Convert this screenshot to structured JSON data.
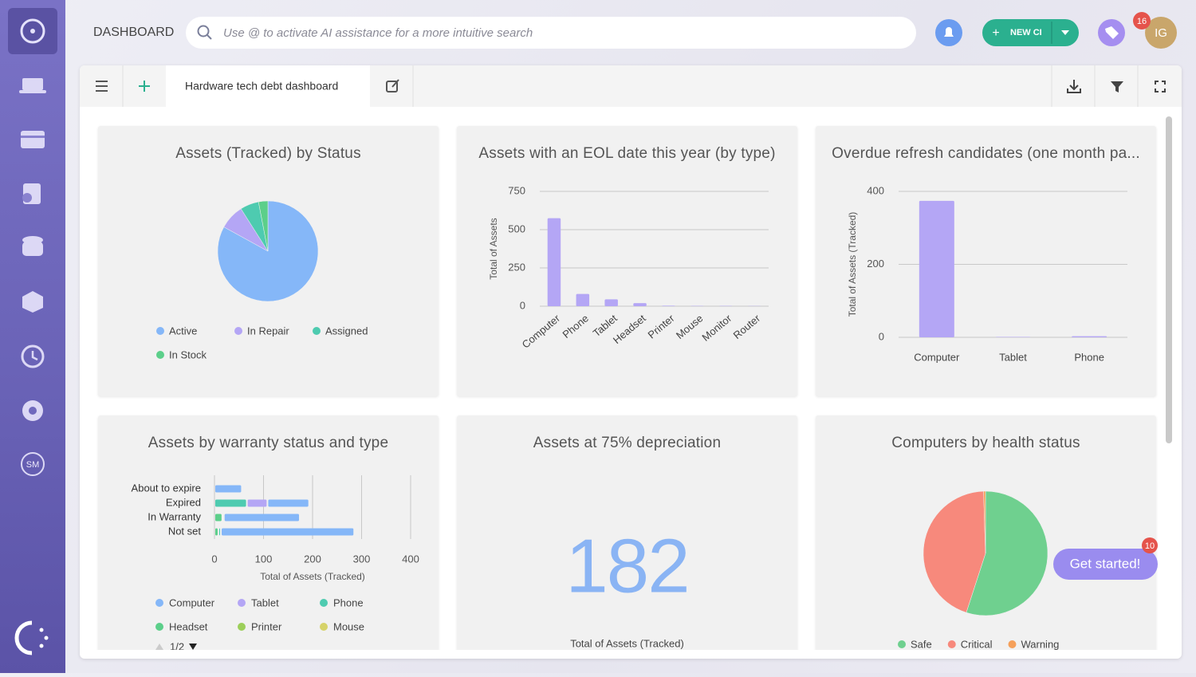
{
  "header": {
    "title": "DASHBOARD",
    "search_placeholder": "Use @ to activate AI assistance for a more intuitive search",
    "new_button": "NEW CI",
    "notification_count": 16,
    "avatar_initials": "IG"
  },
  "sidebar": {
    "sm_label": "SM"
  },
  "toolbar": {
    "tab": "Hardware tech debt dashboard"
  },
  "assistant": {
    "button": "Get started!",
    "badge": 10
  },
  "chart_data": [
    {
      "type": "pie",
      "title": "Assets (Tracked) by Status",
      "categories": [
        "Active",
        "In Repair",
        "Assigned",
        "In Stock"
      ],
      "values": [
        83,
        8,
        6,
        3
      ],
      "colors": [
        "#85b7f8",
        "#b4a6f5",
        "#4ecbb0",
        "#5ccf8a"
      ]
    },
    {
      "type": "bar",
      "title": "Assets with an EOL date this year (by type)",
      "y_label": "Total of Assets",
      "categories": [
        "Computer",
        "Phone",
        "Tablet",
        "Headset",
        "Printer",
        "Mouse",
        "Monitor",
        "Router"
      ],
      "values": [
        575,
        80,
        45,
        20,
        3,
        2,
        2,
        1
      ],
      "color": "#b4a6f5",
      "ylim": [
        0,
        750
      ],
      "yticks": [
        0,
        250,
        500,
        750
      ],
      "grid": true
    },
    {
      "type": "bar",
      "title": "Overdue refresh candidates (one month pa...",
      "y_label": "Total of Assets (Tracked)",
      "categories": [
        "Computer",
        "Tablet",
        "Phone"
      ],
      "values": [
        374,
        1,
        3
      ],
      "color": "#b4a6f5",
      "ylim": [
        0,
        400
      ],
      "yticks": [
        0,
        200,
        400
      ],
      "grid": true
    },
    {
      "type": "barh",
      "stacked": true,
      "title": "Assets by warranty status and type",
      "x_label": "Total of Assets (Tracked)",
      "categories": [
        "About to expire",
        "Expired",
        "In Warranty",
        "Not set"
      ],
      "series": [
        {
          "name": "Computer",
          "color": "#85b7f8",
          "values": [
            56,
            85,
            155,
            272
          ]
        },
        {
          "name": "Tablet",
          "color": "#b4a6f5",
          "values": [
            0,
            42,
            0,
            0
          ]
        },
        {
          "name": "Phone",
          "color": "#4ecbb0",
          "values": [
            0,
            66,
            3,
            5
          ]
        },
        {
          "name": "Headset",
          "color": "#5ccf8a",
          "values": [
            0,
            0,
            16,
            8
          ]
        },
        {
          "name": "Printer",
          "color": "#9ccf5a",
          "values": [
            0,
            0,
            0,
            0
          ]
        },
        {
          "name": "Mouse",
          "color": "#d6d36a",
          "values": [
            0,
            0,
            0,
            0
          ]
        }
      ],
      "xlim": [
        0,
        400
      ],
      "xticks": [
        0,
        100,
        200,
        300,
        400
      ],
      "grid": true,
      "legend_page": "1/2"
    },
    {
      "type": "kpi",
      "title": "Assets at 75% depreciation",
      "value": 182,
      "label": "Total of Assets (Tracked)",
      "color": "#8ab4f4"
    },
    {
      "type": "pie",
      "title": "Computers by health status",
      "categories": [
        "Safe",
        "Critical",
        "Warning"
      ],
      "values": [
        55,
        44.5,
        0.5
      ],
      "colors": [
        "#6fd08f",
        "#f7897c",
        "#f5a05a"
      ]
    }
  ]
}
